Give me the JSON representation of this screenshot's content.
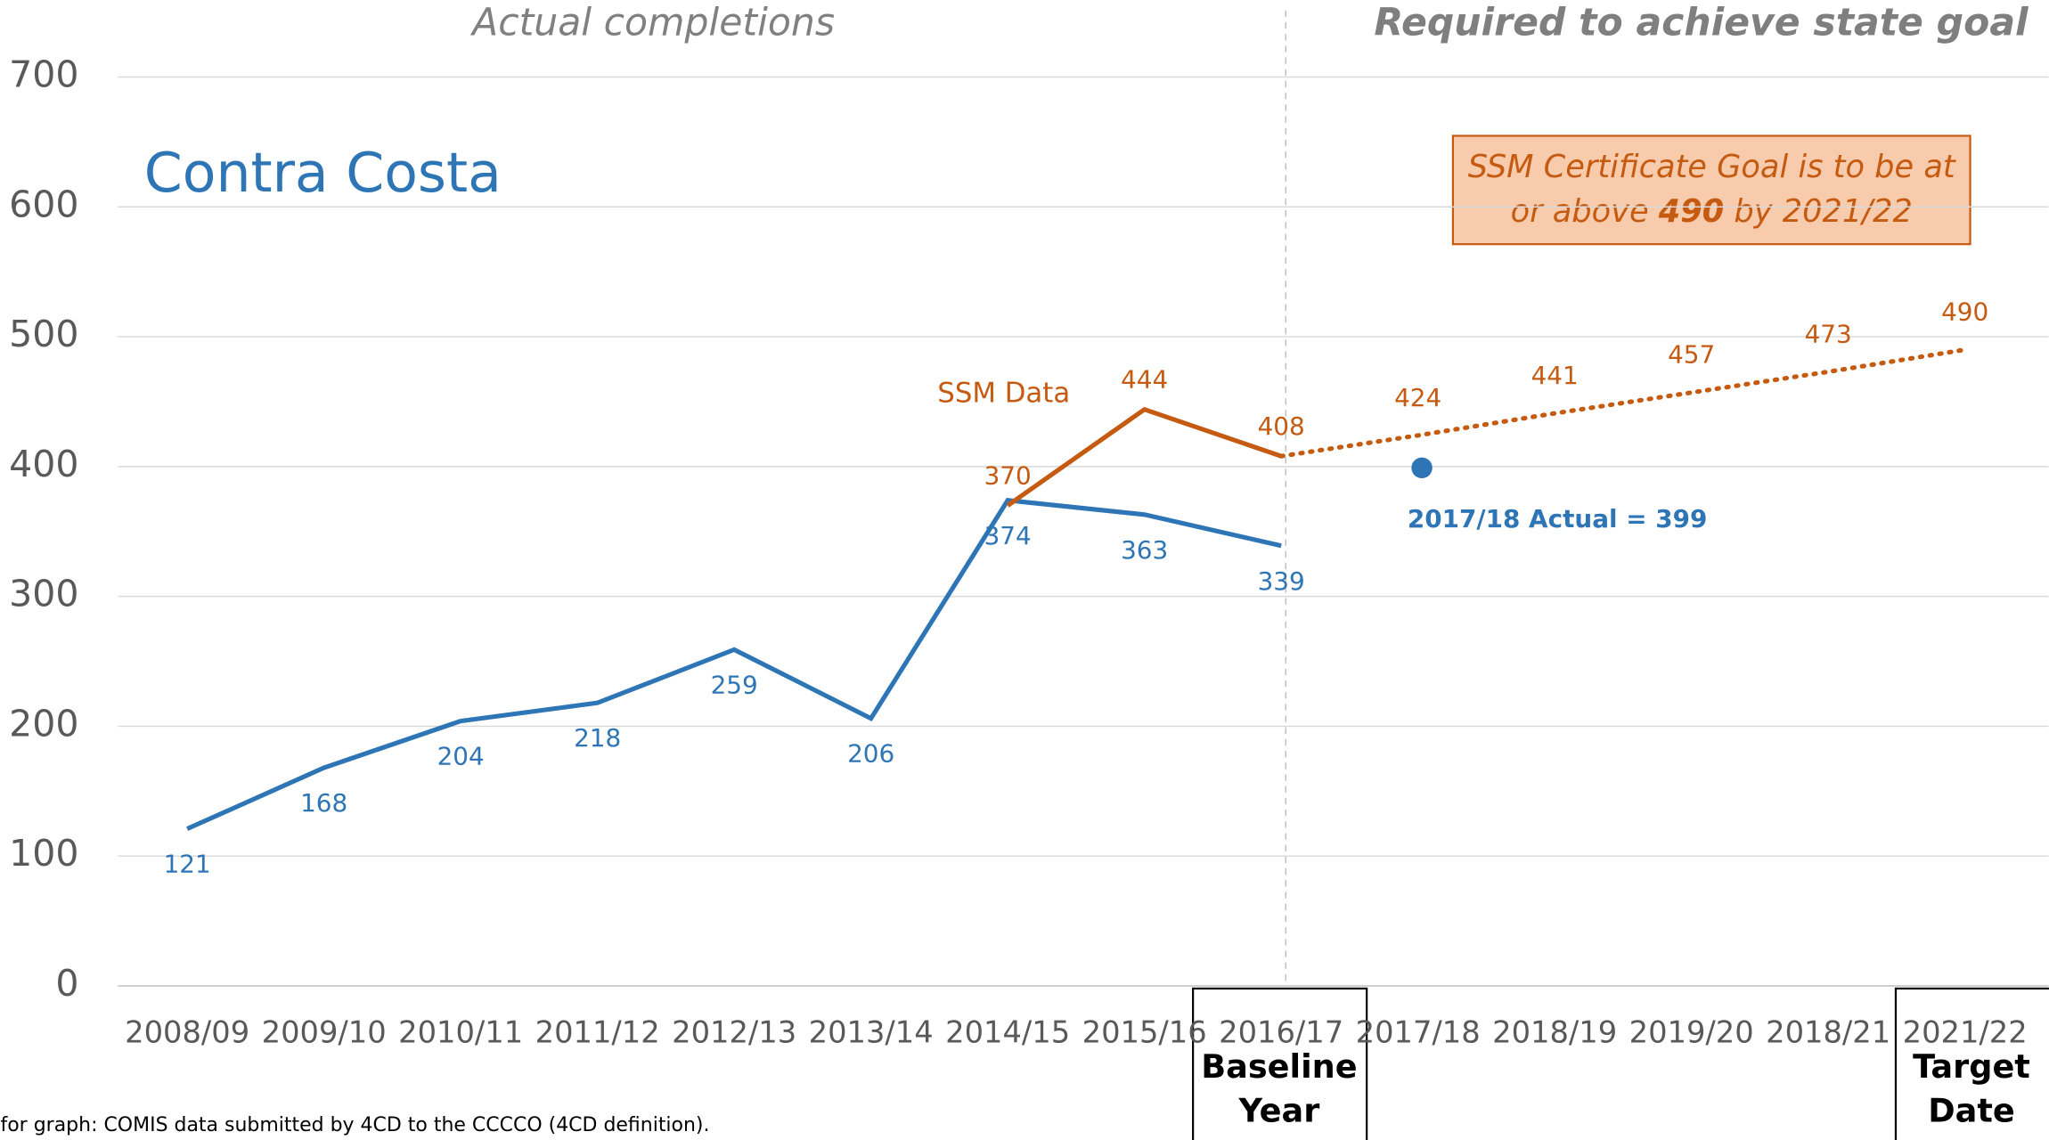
{
  "chart_data": {
    "type": "line",
    "title": "Contra Costa",
    "header_left": "Actual completions",
    "header_right": "Required to achieve state goal",
    "categories": [
      "2008/09",
      "2009/10",
      "2010/11",
      "2011/12",
      "2012/13",
      "2013/14",
      "2014/15",
      "2015/16",
      "2016/17",
      "2017/18",
      "2018/19",
      "2019/20",
      "2018/21",
      "2021/22"
    ],
    "series": [
      {
        "color": "#2e75b6",
        "style": "solid",
        "label_side": "below",
        "values": [
          121,
          168,
          204,
          218,
          259,
          206,
          374,
          363,
          339,
          null,
          null,
          null,
          null,
          null
        ]
      },
      {
        "name": "SSM Data",
        "color": "#c55a11",
        "style": "solid",
        "label_side": "above",
        "values": [
          null,
          null,
          null,
          null,
          null,
          null,
          370,
          444,
          408,
          null,
          null,
          null,
          null,
          null
        ]
      },
      {
        "color": "#c55a11",
        "style": "dotted",
        "label_side": "above",
        "values": [
          null,
          null,
          null,
          null,
          null,
          null,
          null,
          null,
          408,
          424,
          441,
          457,
          473,
          490
        ],
        "value_labels": [
          null,
          null,
          null,
          null,
          null,
          null,
          null,
          null,
          null,
          "424",
          "441",
          "457",
          "473",
          "490"
        ]
      },
      {
        "color": "#2e75b6",
        "style": "point",
        "values": [
          null,
          null,
          null,
          null,
          null,
          null,
          null,
          null,
          null,
          399,
          null,
          null,
          null,
          null
        ]
      }
    ],
    "point_annotation": "2017/18 Actual = 399",
    "goal_box": [
      "SSM Certificate Goal is to be at",
      "or above ",
      "490",
      " by 2021/22"
    ],
    "baseline_box": [
      "Baseline",
      "Year"
    ],
    "target_box": [
      "Target",
      "Date"
    ],
    "source": "for graph: COMIS data submitted by 4CD to the CCCCO  (4CD definition).",
    "ylim": [
      0,
      700
    ],
    "yticks": [
      0,
      100,
      200,
      300,
      400,
      500,
      600,
      700
    ],
    "grid": true
  }
}
